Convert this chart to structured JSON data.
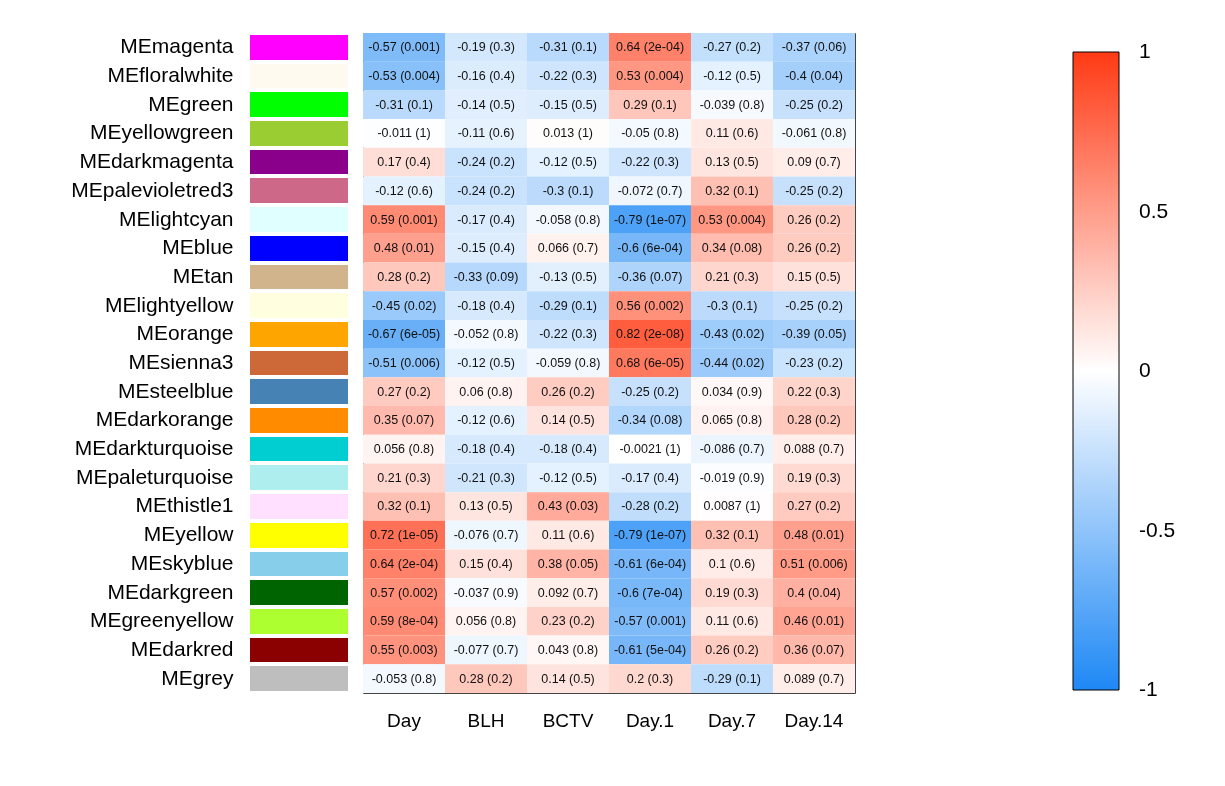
{
  "chart_data": {
    "type": "heatmap",
    "categories": [
      "Day",
      "BLH",
      "BCTV",
      "Day.1",
      "Day.7",
      "Day.14"
    ],
    "y_categories": [
      "MEmagenta",
      "MEfloralwhite",
      "MEgreen",
      "MEyellowgreen",
      "MEdarkmagenta",
      "MEpalevioletred3",
      "MElightcyan",
      "MEblue",
      "MEtan",
      "MElightyellow",
      "MEorange",
      "MEsienna3",
      "MEsteelblue",
      "MEdarkorange",
      "MEdarkturquoise",
      "MEpaleturquoise",
      "MEthistle1",
      "MEyellow",
      "MEskyblue",
      "MEdarkgreen",
      "MEgreenyellow",
      "MEdarkred",
      "MEgrey"
    ],
    "cells": [
      [
        -0.57,
        -0.19,
        -0.31,
        0.64,
        -0.27,
        -0.37
      ],
      [
        -0.53,
        -0.16,
        -0.22,
        0.53,
        -0.12,
        -0.4
      ],
      [
        -0.31,
        -0.14,
        -0.15,
        0.29,
        -0.039,
        -0.25
      ],
      [
        -0.011,
        -0.11,
        0.013,
        -0.05,
        0.11,
        -0.061
      ],
      [
        0.17,
        -0.24,
        -0.12,
        -0.22,
        0.13,
        0.09
      ],
      [
        -0.12,
        -0.24,
        -0.3,
        -0.072,
        0.32,
        -0.25
      ],
      [
        0.59,
        -0.17,
        -0.058,
        -0.79,
        0.53,
        0.26
      ],
      [
        0.48,
        -0.15,
        0.066,
        -0.6,
        0.34,
        0.26
      ],
      [
        0.28,
        -0.33,
        -0.13,
        -0.36,
        0.21,
        0.15
      ],
      [
        -0.45,
        -0.18,
        -0.29,
        0.56,
        -0.3,
        -0.25
      ],
      [
        -0.67,
        -0.052,
        -0.22,
        0.82,
        -0.43,
        -0.39
      ],
      [
        -0.51,
        -0.12,
        -0.059,
        0.68,
        -0.44,
        -0.23
      ],
      [
        0.27,
        0.06,
        0.26,
        -0.25,
        0.034,
        0.22
      ],
      [
        0.35,
        -0.12,
        0.14,
        -0.34,
        0.065,
        0.28
      ],
      [
        0.056,
        -0.18,
        -0.18,
        -0.0021,
        -0.086,
        0.088
      ],
      [
        0.21,
        -0.21,
        -0.12,
        -0.17,
        -0.019,
        0.19
      ],
      [
        0.32,
        0.13,
        0.43,
        -0.28,
        0.0087,
        0.27
      ],
      [
        0.72,
        -0.076,
        0.11,
        -0.79,
        0.32,
        0.48
      ],
      [
        0.64,
        0.15,
        0.38,
        -0.61,
        0.1,
        0.51
      ],
      [
        0.57,
        -0.037,
        0.092,
        -0.6,
        0.19,
        0.4
      ],
      [
        0.59,
        0.056,
        0.23,
        -0.57,
        0.11,
        0.46
      ],
      [
        0.55,
        -0.077,
        0.043,
        -0.61,
        0.26,
        0.36
      ],
      [
        -0.053,
        0.28,
        0.14,
        0.2,
        -0.29,
        0.089
      ]
    ],
    "cell_labels": [
      [
        "-0.57 (0.001)",
        "-0.19 (0.3)",
        "-0.31 (0.1)",
        "0.64 (2e-04)",
        "-0.27 (0.2)",
        "-0.37 (0.06)"
      ],
      [
        "-0.53 (0.004)",
        "-0.16 (0.4)",
        "-0.22 (0.3)",
        "0.53 (0.004)",
        "-0.12 (0.5)",
        "-0.4 (0.04)"
      ],
      [
        "-0.31 (0.1)",
        "-0.14 (0.5)",
        "-0.15 (0.5)",
        "0.29 (0.1)",
        "-0.039 (0.8)",
        "-0.25 (0.2)"
      ],
      [
        "-0.011 (1)",
        "-0.11 (0.6)",
        "0.013 (1)",
        "-0.05 (0.8)",
        "0.11 (0.6)",
        "-0.061 (0.8)"
      ],
      [
        "0.17 (0.4)",
        "-0.24 (0.2)",
        "-0.12 (0.5)",
        "-0.22 (0.3)",
        "0.13 (0.5)",
        "0.09 (0.7)"
      ],
      [
        "-0.12 (0.6)",
        "-0.24 (0.2)",
        "-0.3 (0.1)",
        "-0.072 (0.7)",
        "0.32 (0.1)",
        "-0.25 (0.2)"
      ],
      [
        "0.59 (0.001)",
        "-0.17 (0.4)",
        "-0.058 (0.8)",
        "-0.79 (1e-07)",
        "0.53 (0.004)",
        "0.26 (0.2)"
      ],
      [
        "0.48 (0.01)",
        "-0.15 (0.4)",
        "0.066 (0.7)",
        "-0.6 (6e-04)",
        "0.34 (0.08)",
        "0.26 (0.2)"
      ],
      [
        "0.28 (0.2)",
        "-0.33 (0.09)",
        "-0.13 (0.5)",
        "-0.36 (0.07)",
        "0.21 (0.3)",
        "0.15 (0.5)"
      ],
      [
        "-0.45 (0.02)",
        "-0.18 (0.4)",
        "-0.29 (0.1)",
        "0.56 (0.002)",
        "-0.3 (0.1)",
        "-0.25 (0.2)"
      ],
      [
        "-0.67 (6e-05)",
        "-0.052 (0.8)",
        "-0.22 (0.3)",
        "0.82 (2e-08)",
        "-0.43 (0.02)",
        "-0.39 (0.05)"
      ],
      [
        "-0.51 (0.006)",
        "-0.12 (0.5)",
        "-0.059 (0.8)",
        "0.68 (6e-05)",
        "-0.44 (0.02)",
        "-0.23 (0.2)"
      ],
      [
        "0.27 (0.2)",
        "0.06 (0.8)",
        "0.26 (0.2)",
        "-0.25 (0.2)",
        "0.034 (0.9)",
        "0.22 (0.3)"
      ],
      [
        "0.35 (0.07)",
        "-0.12 (0.6)",
        "0.14 (0.5)",
        "-0.34 (0.08)",
        "0.065 (0.8)",
        "0.28 (0.2)"
      ],
      [
        "0.056 (0.8)",
        "-0.18 (0.4)",
        "-0.18 (0.4)",
        "-0.0021 (1)",
        "-0.086 (0.7)",
        "0.088 (0.7)"
      ],
      [
        "0.21 (0.3)",
        "-0.21 (0.3)",
        "-0.12 (0.5)",
        "-0.17 (0.4)",
        "-0.019 (0.9)",
        "0.19 (0.3)"
      ],
      [
        "0.32 (0.1)",
        "0.13 (0.5)",
        "0.43 (0.03)",
        "-0.28 (0.2)",
        "0.0087 (1)",
        "0.27 (0.2)"
      ],
      [
        "0.72 (1e-05)",
        "-0.076 (0.7)",
        "0.11 (0.6)",
        "-0.79 (1e-07)",
        "0.32 (0.1)",
        "0.48 (0.01)"
      ],
      [
        "0.64 (2e-04)",
        "0.15 (0.4)",
        "0.38 (0.05)",
        "-0.61 (6e-04)",
        "0.1 (0.6)",
        "0.51 (0.006)"
      ],
      [
        "0.57 (0.002)",
        "-0.037 (0.9)",
        "0.092 (0.7)",
        "-0.6 (7e-04)",
        "0.19 (0.3)",
        "0.4 (0.04)"
      ],
      [
        "0.59 (8e-04)",
        "0.056 (0.8)",
        "0.23 (0.2)",
        "-0.57 (0.001)",
        "0.11 (0.6)",
        "0.46 (0.01)"
      ],
      [
        "0.55 (0.003)",
        "-0.077 (0.7)",
        "0.043 (0.8)",
        "-0.61 (5e-04)",
        "0.26 (0.2)",
        "0.36 (0.07)"
      ],
      [
        "-0.053 (0.8)",
        "0.28 (0.2)",
        "0.14 (0.5)",
        "0.2 (0.3)",
        "-0.29 (0.1)",
        "0.089 (0.7)"
      ]
    ],
    "clim": [
      -1,
      1
    ],
    "cticks": [
      -1,
      -0.5,
      0,
      0.5,
      1
    ]
  }
}
